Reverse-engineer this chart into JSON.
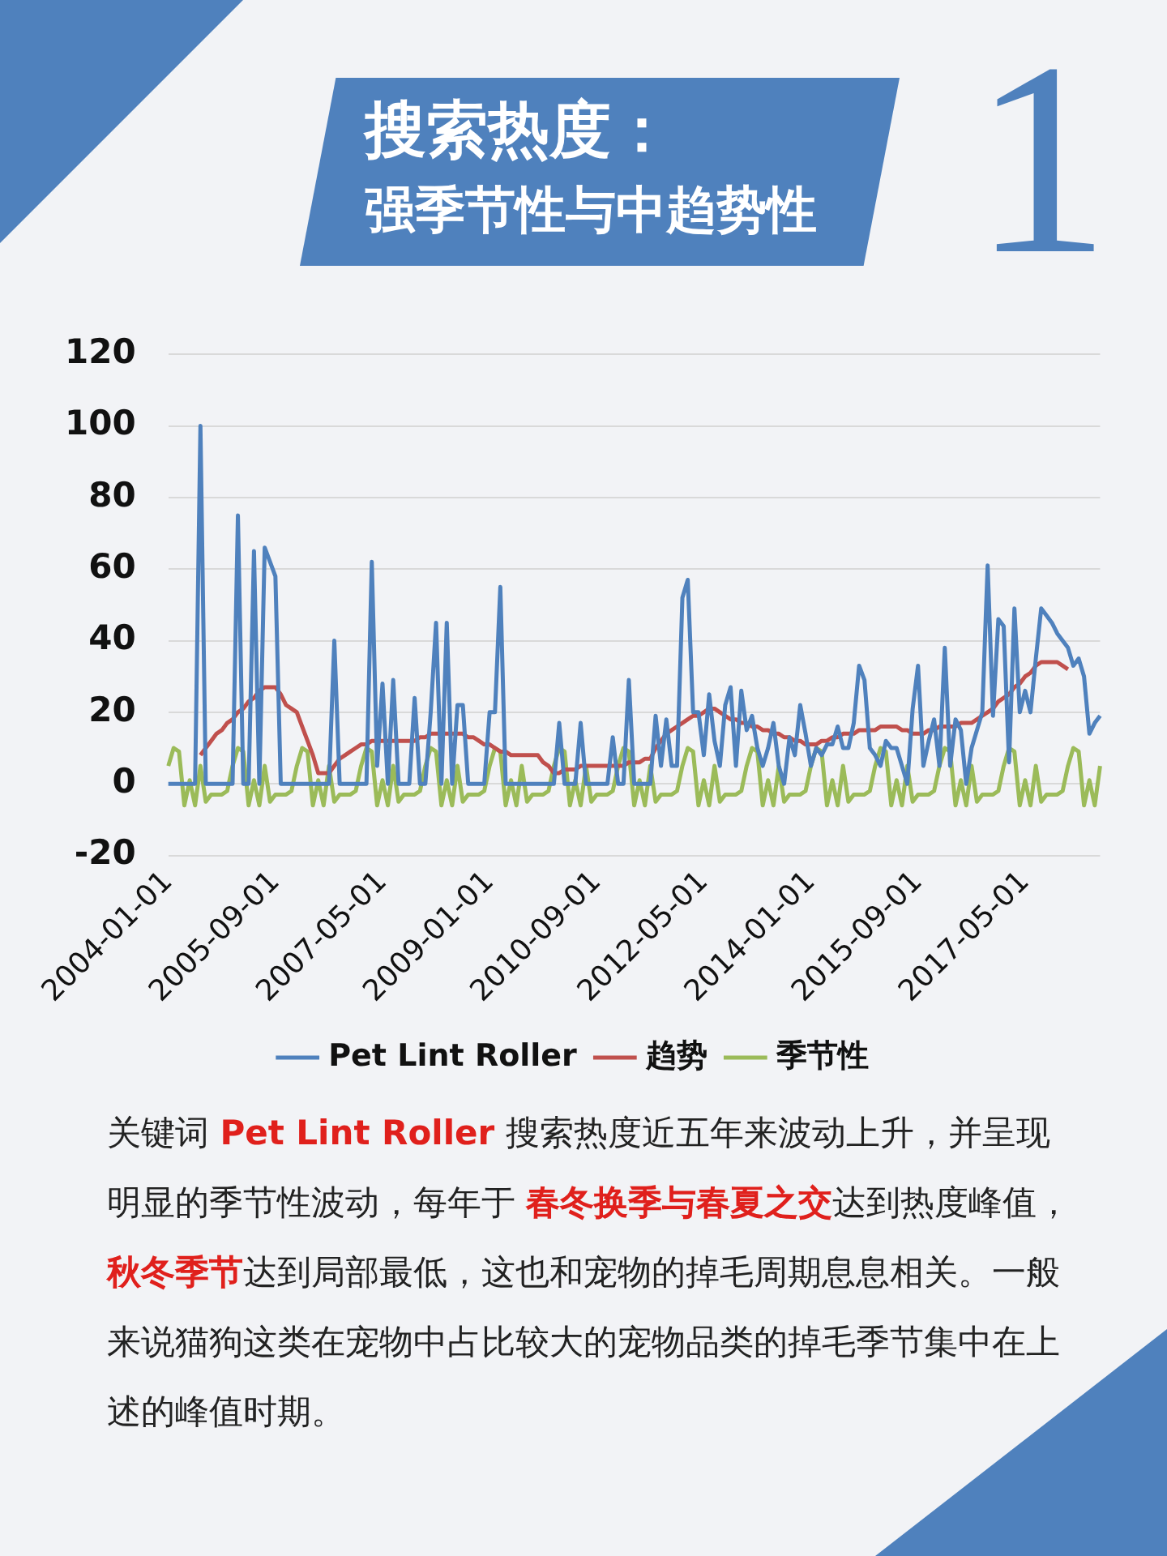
{
  "chart_data": {
    "type": "line",
    "title": "搜索热度：",
    "subtitle": "强季节性与中趋势性",
    "annotations": [
      "1",
      "关键词 ",
      "Pet Lint Roller",
      " 搜索热度近五年来波动上升，并呈现明显的季节性波动，每年于 ",
      "春冬换季与春夏之交",
      "达到热度峰值，",
      "秋冬季节",
      "达到局部最低，这也和宠物的掉毛周期息息相关。一般来说猫狗这类在宠物中占比较大的宠物品类的掉毛季节集中在上述的峰值时期。"
    ],
    "categories": [
      "2004-01-01",
      null,
      null,
      null,
      null,
      null,
      null,
      null,
      null,
      null,
      null,
      null,
      null,
      null,
      null,
      null,
      null,
      null,
      null,
      null,
      "2005-09-01",
      null,
      null,
      null,
      null,
      null,
      null,
      null,
      null,
      null,
      null,
      null,
      null,
      null,
      null,
      null,
      null,
      null,
      null,
      null,
      "2007-05-01",
      null,
      null,
      null,
      null,
      null,
      null,
      null,
      null,
      null,
      null,
      null,
      null,
      null,
      null,
      null,
      null,
      null,
      null,
      null,
      "2009-01-01",
      null,
      null,
      null,
      null,
      null,
      null,
      null,
      null,
      null,
      null,
      null,
      null,
      null,
      null,
      null,
      null,
      null,
      null,
      null,
      "2010-09-01",
      null,
      null,
      null,
      null,
      null,
      null,
      null,
      null,
      null,
      null,
      null,
      null,
      null,
      null,
      null,
      null,
      null,
      null,
      null,
      "2012-05-01",
      null,
      null,
      null,
      null,
      null,
      null,
      null,
      null,
      null,
      null,
      null,
      null,
      null,
      null,
      null,
      null,
      null,
      null,
      null,
      "2014-01-01",
      null,
      null,
      null,
      null,
      null,
      null,
      null,
      null,
      null,
      null,
      null,
      null,
      null,
      null,
      null,
      null,
      null,
      null,
      null,
      "2015-09-01",
      null,
      null,
      null,
      null,
      null,
      null,
      null,
      null,
      null,
      null,
      null,
      null,
      null,
      null,
      null,
      null,
      null,
      null,
      null,
      "2017-05-01",
      null,
      null,
      null,
      null,
      null,
      null,
      null,
      null,
      null,
      null,
      null,
      null,
      null,
      null
    ],
    "series": [
      {
        "name": "Pet Lint Roller",
        "color": "#4f81bd",
        "values": [
          0,
          0,
          0,
          0,
          0,
          0,
          100,
          0,
          0,
          0,
          0,
          0,
          0,
          75,
          0,
          0,
          65,
          0,
          66,
          62,
          58,
          0,
          0,
          0,
          0,
          0,
          0,
          0,
          0,
          0,
          0,
          40,
          0,
          0,
          0,
          0,
          0,
          0,
          62,
          5,
          28,
          0,
          29,
          0,
          0,
          0,
          24,
          0,
          0,
          20,
          45,
          0,
          45,
          0,
          22,
          22,
          0,
          0,
          0,
          0,
          20,
          20,
          55,
          0,
          0,
          0,
          0,
          0,
          0,
          0,
          0,
          0,
          0,
          17,
          0,
          0,
          0,
          17,
          0,
          0,
          0,
          0,
          0,
          13,
          0,
          0,
          29,
          0,
          0,
          0,
          0,
          19,
          5,
          18,
          5,
          5,
          52,
          57,
          20,
          20,
          8,
          25,
          12,
          5,
          22,
          27,
          5,
          26,
          15,
          19,
          10,
          5,
          10,
          17,
          5,
          0,
          13,
          8,
          22,
          14,
          5,
          10,
          8,
          11,
          11,
          16,
          10,
          10,
          17,
          33,
          29,
          10,
          8,
          5,
          12,
          10,
          10,
          5,
          0,
          21,
          33,
          5,
          12,
          18,
          5,
          38,
          5,
          18,
          15,
          0,
          10,
          15,
          20,
          61,
          19,
          46,
          44,
          6,
          49,
          20,
          26,
          20,
          35,
          49,
          47,
          45,
          42,
          40,
          38,
          33,
          35,
          30,
          14,
          17,
          19
        ]
      },
      {
        "name": "趋势",
        "color": "#c0504d",
        "values": [
          null,
          null,
          null,
          null,
          null,
          null,
          8,
          10,
          12,
          14,
          15,
          17,
          18,
          20,
          21,
          23,
          24,
          26,
          27,
          27,
          27,
          25,
          22,
          21,
          20,
          16,
          12,
          8,
          3,
          3,
          3,
          5,
          7,
          8,
          9,
          10,
          11,
          11,
          12,
          12,
          12,
          12,
          12,
          12,
          12,
          12,
          12,
          13,
          13,
          14,
          14,
          14,
          14,
          14,
          14,
          14,
          13,
          13,
          12,
          11,
          11,
          10,
          9,
          9,
          8,
          8,
          8,
          8,
          8,
          8,
          6,
          5,
          3,
          3,
          4,
          4,
          4,
          5,
          5,
          5,
          5,
          5,
          5,
          5,
          5,
          5,
          6,
          6,
          6,
          7,
          7,
          10,
          12,
          14,
          15,
          16,
          17,
          18,
          19,
          19,
          20,
          21,
          21,
          20,
          19,
          18,
          18,
          17,
          17,
          16,
          16,
          15,
          15,
          14,
          14,
          13,
          13,
          12,
          12,
          11,
          11,
          11,
          12,
          12,
          13,
          13,
          14,
          14,
          14,
          15,
          15,
          15,
          15,
          16,
          16,
          16,
          16,
          15,
          15,
          14,
          14,
          14,
          15,
          15,
          16,
          16,
          16,
          16,
          17,
          17,
          17,
          18,
          19,
          20,
          21,
          23,
          24,
          25,
          27,
          28,
          30,
          31,
          33,
          34,
          34,
          34,
          34,
          33,
          32,
          null,
          null,
          null,
          null,
          null,
          null
        ]
      },
      {
        "name": "季节性",
        "color": "#9bbb59",
        "values": [
          5,
          10,
          9,
          -6,
          1,
          -6,
          5,
          -5,
          -3,
          -3,
          -3,
          -2,
          5,
          10,
          9,
          -6,
          1,
          -6,
          5,
          -5,
          -3,
          -3,
          -3,
          -2,
          5,
          10,
          9,
          -6,
          1,
          -6,
          5,
          -5,
          -3,
          -3,
          -3,
          -2,
          5,
          10,
          9,
          -6,
          1,
          -6,
          5,
          -5,
          -3,
          -3,
          -3,
          -2,
          5,
          10,
          9,
          -6,
          1,
          -6,
          5,
          -5,
          -3,
          -3,
          -3,
          -2,
          5,
          10,
          9,
          -6,
          1,
          -6,
          5,
          -5,
          -3,
          -3,
          -3,
          -2,
          5,
          10,
          9,
          -6,
          1,
          -6,
          5,
          -5,
          -3,
          -3,
          -3,
          -2,
          5,
          10,
          9,
          -6,
          1,
          -6,
          5,
          -5,
          -3,
          -3,
          -3,
          -2,
          5,
          10,
          9,
          -6,
          1,
          -6,
          5,
          -5,
          -3,
          -3,
          -3,
          -2,
          5,
          10,
          9,
          -6,
          1,
          -6,
          5,
          -5,
          -3,
          -3,
          -3,
          -2,
          5,
          10,
          9,
          -6,
          1,
          -6,
          5,
          -5,
          -3,
          -3,
          -3,
          -2,
          5,
          10,
          9,
          -6,
          1,
          -6,
          5,
          -5,
          -3,
          -3,
          -3,
          -2,
          5,
          10,
          9,
          -6,
          1,
          -6,
          5,
          -5,
          -3,
          -3,
          -3,
          -2,
          5,
          10,
          9,
          -6,
          1,
          -6,
          5,
          -5,
          -3,
          -3,
          -3,
          -2,
          5,
          10,
          9,
          -6,
          1,
          -6,
          5
        ]
      }
    ],
    "ylim": [
      -20,
      120
    ],
    "yticks": [
      -20,
      0,
      20,
      40,
      60,
      80,
      100,
      120
    ],
    "grid": "y",
    "legend": "bottom",
    "marker": "none",
    "line_style": "solid"
  }
}
